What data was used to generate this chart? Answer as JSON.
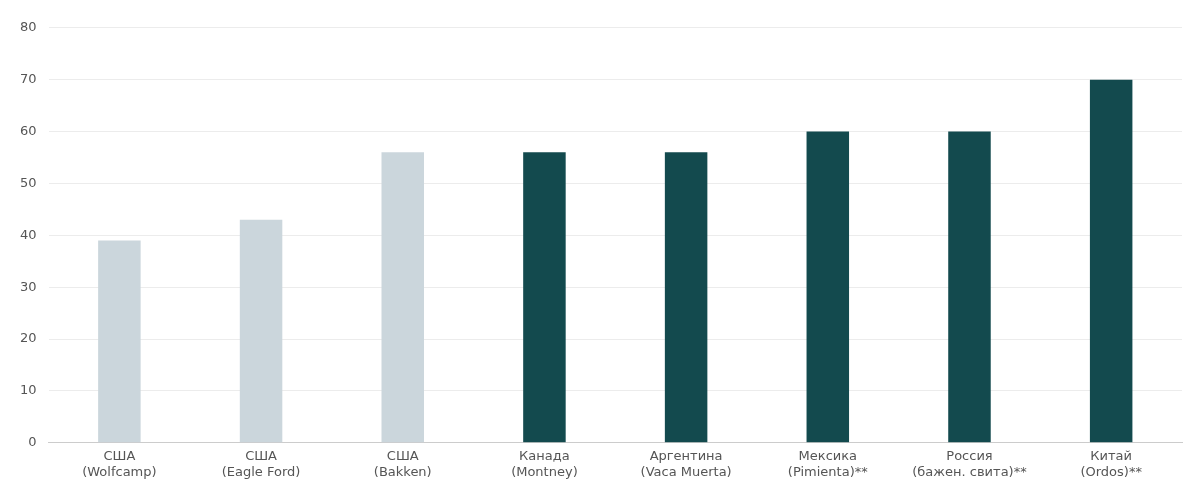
{
  "chart_data": {
    "type": "bar",
    "categories": [
      "США\n(Wolfcamp)",
      "США\n(Eagle Ford)",
      "США\n(Bakken)",
      "Канада\n(Montney)",
      "Аргентина\n(Vaca Muerta)",
      "Мексика\n(Pimienta)**",
      "Россия\n(бажен. свита)**",
      "Китай\n(Ordos)**"
    ],
    "values": [
      39,
      43,
      56,
      56,
      56,
      60,
      60,
      70
    ],
    "colors": [
      "#cbd6dc",
      "#cbd6dc",
      "#cbd6dc",
      "#134a4e",
      "#134a4e",
      "#134a4e",
      "#134a4e",
      "#134a4e"
    ],
    "ylim": [
      0,
      80
    ],
    "yticks": [
      0,
      10,
      20,
      30,
      40,
      50,
      60,
      70,
      80
    ],
    "grid": "y"
  }
}
